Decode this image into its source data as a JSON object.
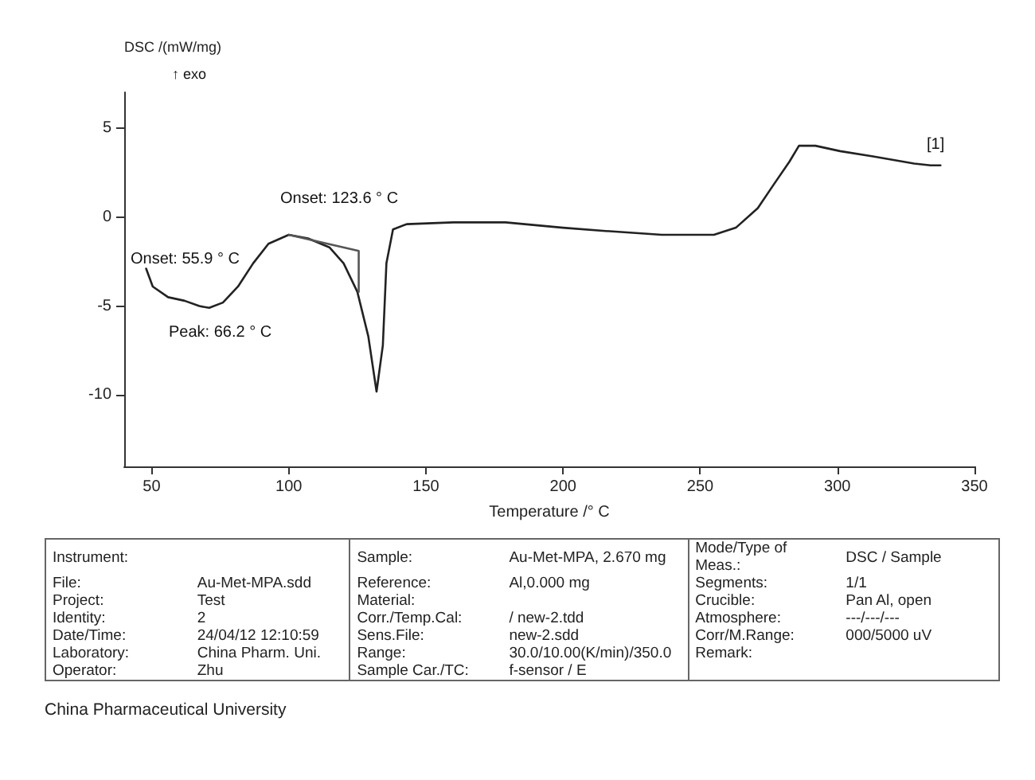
{
  "chart_data": [
    {
      "type": "line",
      "xlabel": "Temperature /° C",
      "ylabel": "DSC /(mW/mg)",
      "xlim": [
        40,
        350
      ],
      "ylim": [
        -14,
        7
      ],
      "xticks": [
        50,
        100,
        150,
        200,
        250,
        300,
        350
      ],
      "yticks": [
        5,
        0,
        -5,
        -10
      ],
      "grid": false,
      "marker": "none",
      "line_style": "solid",
      "annotations": [
        "↑ exo",
        "Onset: 123.6 ° C",
        "Onset: 55.9 ° C",
        "Peak: 66.2 ° C",
        "[1]"
      ],
      "series": [
        {
          "color": "#222222",
          "x": [
            48,
            50.4,
            56,
            62,
            67.4,
            71,
            76,
            81.5,
            87,
            92.6,
            100,
            107,
            114.8,
            120,
            125,
            129,
            132,
            134.3,
            135.6,
            138,
            143,
            160,
            179,
            200,
            217,
            236,
            255,
            263,
            271,
            276.7,
            282.5,
            286,
            292,
            301,
            313,
            328,
            334,
            337.6
          ],
          "values": [
            -2.9,
            -3.9,
            -4.5,
            -4.7,
            -5.0,
            -5.1,
            -4.8,
            -3.9,
            -2.6,
            -1.5,
            -1.0,
            -1.2,
            -1.7,
            -2.6,
            -4.2,
            -6.7,
            -9.8,
            -7.2,
            -2.6,
            -0.7,
            -0.4,
            -0.3,
            -0.3,
            -0.6,
            -0.8,
            -1.0,
            -1.0,
            -0.6,
            0.5,
            1.8,
            3.1,
            4.0,
            4.0,
            3.7,
            3.4,
            3.0,
            2.9,
            2.9
          ]
        },
        {
          "color": "#555555",
          "x": [
            100,
            125.5,
            125.5
          ],
          "values": [
            -1.0,
            -1.9,
            -4.2
          ]
        }
      ]
    },
    {
      "type": "other",
      "annotations": [
        "Instrument:",
        null,
        "Sample:",
        "Au-Met-MPA, 2.670 mg",
        "Mode/Type of Meas.:",
        "DSC / Sample",
        "File:",
        "Au-Met-MPA.sdd",
        "Reference:",
        "Al,0.000 mg",
        "Segments:",
        "1/1",
        "Project:",
        "Test",
        "Material:",
        null,
        "Crucible:",
        "Pan Al, open",
        "Identity:",
        "2",
        "Corr./Temp.Cal:",
        "/ new-2.tdd",
        "Atmosphere:",
        "---/---/---",
        "Date/Time:",
        "24/04/12 12:10:59",
        "Sens.File:",
        "new-2.sdd",
        "Corr/M.Range:",
        "000/5000 uV",
        "Laboratory:",
        "China Pharm. Uni.",
        "Range:",
        "30.0/10.00(K/min)/350.0",
        "Remark:",
        null,
        "Operator:",
        "Zhu",
        "Sample Car./TC:",
        "f-sensor / E",
        null,
        null,
        "China Pharmaceutical University"
      ]
    }
  ]
}
